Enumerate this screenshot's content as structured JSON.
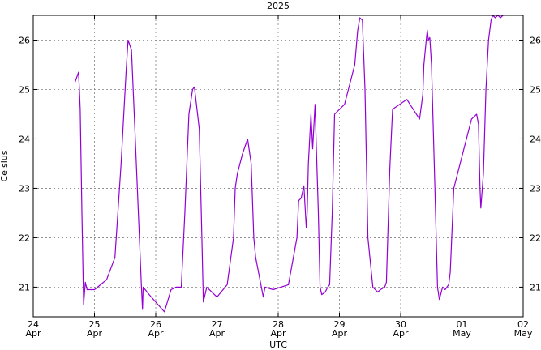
{
  "chart_data": {
    "type": "line",
    "title": "2025",
    "xlabel": "UTC",
    "ylabel": "Celsius",
    "grid": true,
    "xlim": [
      "2025-04-24 00:00",
      "2025-05-02 00:00"
    ],
    "ylim": [
      20.4,
      26.5
    ],
    "x_ticks": [
      {
        "day": "24",
        "month": "Apr",
        "time": "2025-04-24 00:00"
      },
      {
        "day": "25",
        "month": "Apr",
        "time": "2025-04-25 00:00"
      },
      {
        "day": "26",
        "month": "Apr",
        "time": "2025-04-26 00:00"
      },
      {
        "day": "27",
        "month": "Apr",
        "time": "2025-04-27 00:00"
      },
      {
        "day": "28",
        "month": "Apr",
        "time": "2025-04-28 00:00"
      },
      {
        "day": "29",
        "month": "Apr",
        "time": "2025-04-29 00:00"
      },
      {
        "day": "30",
        "month": "Apr",
        "time": "2025-04-30 00:00"
      },
      {
        "day": "01",
        "month": "May",
        "time": "2025-05-01 00:00"
      },
      {
        "day": "02",
        "month": "May",
        "time": "2025-05-02 00:00"
      }
    ],
    "y_ticks": [
      21,
      22,
      23,
      24,
      25,
      26
    ],
    "series": [
      {
        "color": "#9400d3",
        "x": [
          "2025-04-24 16:25",
          "2025-04-24 17:45",
          "2025-04-24 18:05",
          "2025-04-24 18:25",
          "2025-04-24 19:05",
          "2025-04-24 19:45",
          "2025-04-24 20:25",
          "2025-04-24 21:05",
          "2025-04-25 00:00",
          "2025-04-25 04:45",
          "2025-04-25 08:00",
          "2025-04-25 10:25",
          "2025-04-25 12:25",
          "2025-04-25 13:10",
          "2025-04-25 14:30",
          "2025-04-25 16:00",
          "2025-04-25 18:25",
          "2025-04-25 18:50",
          "2025-04-25 19:05",
          "2025-04-25 21:25",
          "2025-04-26 03:25",
          "2025-04-26 06:00",
          "2025-04-26 08:00",
          "2025-04-26 10:00",
          "2025-04-26 11:25",
          "2025-04-26 13:00",
          "2025-04-26 14:25",
          "2025-04-26 15:10",
          "2025-04-26 17:05",
          "2025-04-26 18:05",
          "2025-04-26 18:40",
          "2025-04-26 20:00",
          "2025-04-27 00:00",
          "2025-04-27 04:00",
          "2025-04-27 06:30",
          "2025-04-27 07:10",
          "2025-04-27 08:00",
          "2025-04-27 10:00",
          "2025-04-27 12:00",
          "2025-04-27 13:25",
          "2025-04-27 14:25",
          "2025-04-27 15:10",
          "2025-04-27 18:10",
          "2025-04-27 18:50",
          "2025-04-27 22:00",
          "2025-04-28 04:00",
          "2025-04-28 07:20",
          "2025-04-28 08:00",
          "2025-04-28 09:00",
          "2025-04-28 10:05",
          "2025-04-28 11:00",
          "2025-04-28 11:20",
          "2025-04-28 11:50",
          "2025-04-28 12:50",
          "2025-04-28 13:30",
          "2025-04-28 14:25",
          "2025-04-28 15:45",
          "2025-04-28 16:25",
          "2025-04-28 17:05",
          "2025-04-28 18:25",
          "2025-04-28 19:25",
          "2025-04-28 20:10",
          "2025-04-28 21:10",
          "2025-04-28 22:05",
          "2025-04-29 02:00",
          "2025-04-29 06:00",
          "2025-04-29 07:10",
          "2025-04-29 08:00",
          "2025-04-29 09:00",
          "2025-04-29 10:00",
          "2025-04-29 11:10",
          "2025-04-29 13:05",
          "2025-04-29 15:00",
          "2025-04-29 16:05",
          "2025-04-29 17:45",
          "2025-04-29 18:25",
          "2025-04-29 19:45",
          "2025-04-29 20:50",
          "2025-04-30 02:25",
          "2025-04-30 07:25",
          "2025-04-30 08:40",
          "2025-04-30 09:05",
          "2025-04-30 10:00",
          "2025-04-30 10:25",
          "2025-04-30 10:50",
          "2025-04-30 11:25",
          "2025-04-30 12:05",
          "2025-04-30 13:25",
          "2025-04-30 14:25",
          "2025-04-30 15:10",
          "2025-04-30 16:25",
          "2025-04-30 17:25",
          "2025-04-30 18:05",
          "2025-04-30 18:50",
          "2025-04-30 19:25",
          "2025-04-30 20:50",
          "2025-05-01 03:45",
          "2025-05-01 05:45",
          "2025-05-01 06:30",
          "2025-05-01 07:05",
          "2025-05-01 07:25",
          "2025-05-01 08:25",
          "2025-05-01 09:25",
          "2025-05-01 10:25",
          "2025-05-01 11:25",
          "2025-05-01 12:05",
          "2025-05-01 13:05",
          "2025-05-01 14:05",
          "2025-05-01 15:05",
          "2025-05-01 16:05"
        ],
        "values": [
          25.15,
          25.35,
          25.0,
          24.6,
          22.5,
          20.65,
          21.1,
          20.95,
          20.95,
          21.15,
          21.6,
          23.5,
          25.4,
          26.0,
          25.8,
          24.0,
          21.0,
          20.55,
          21.0,
          20.85,
          20.5,
          20.95,
          21.0,
          21.0,
          22.5,
          24.5,
          25.0,
          25.05,
          24.2,
          22.0,
          20.7,
          21.0,
          20.8,
          21.05,
          22.0,
          23.0,
          23.3,
          23.7,
          24.0,
          23.5,
          22.0,
          21.6,
          20.8,
          21.0,
          20.95,
          21.05,
          22.0,
          22.75,
          22.8,
          23.05,
          22.2,
          22.5,
          23.5,
          24.5,
          23.8,
          24.7,
          22.5,
          21.0,
          20.85,
          20.9,
          21.0,
          21.05,
          22.5,
          24.5,
          24.7,
          25.5,
          26.2,
          26.45,
          26.4,
          25.0,
          22.0,
          21.0,
          20.9,
          20.95,
          21.0,
          21.1,
          23.4,
          24.6,
          24.8,
          24.4,
          24.9,
          25.5,
          26.0,
          26.2,
          26.0,
          26.05,
          25.5,
          23.0,
          21.0,
          20.75,
          21.0,
          20.95,
          21.0,
          21.05,
          21.3,
          23.0,
          24.4,
          24.5,
          24.3,
          23.0,
          22.6,
          23.3,
          25.0,
          26.0,
          26.4,
          26.5,
          26.45,
          26.5,
          26.45,
          26.5
        ]
      }
    ]
  }
}
